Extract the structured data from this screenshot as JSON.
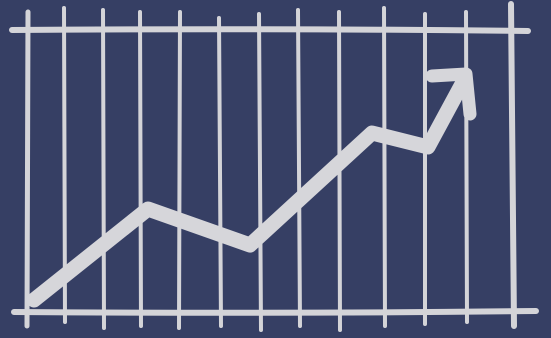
{
  "colors": {
    "background": "#363f64",
    "grid": "#d4d4d8",
    "arrow": "#d6d6da"
  },
  "icons": {
    "main": "trend-up-arrow-icon"
  }
}
